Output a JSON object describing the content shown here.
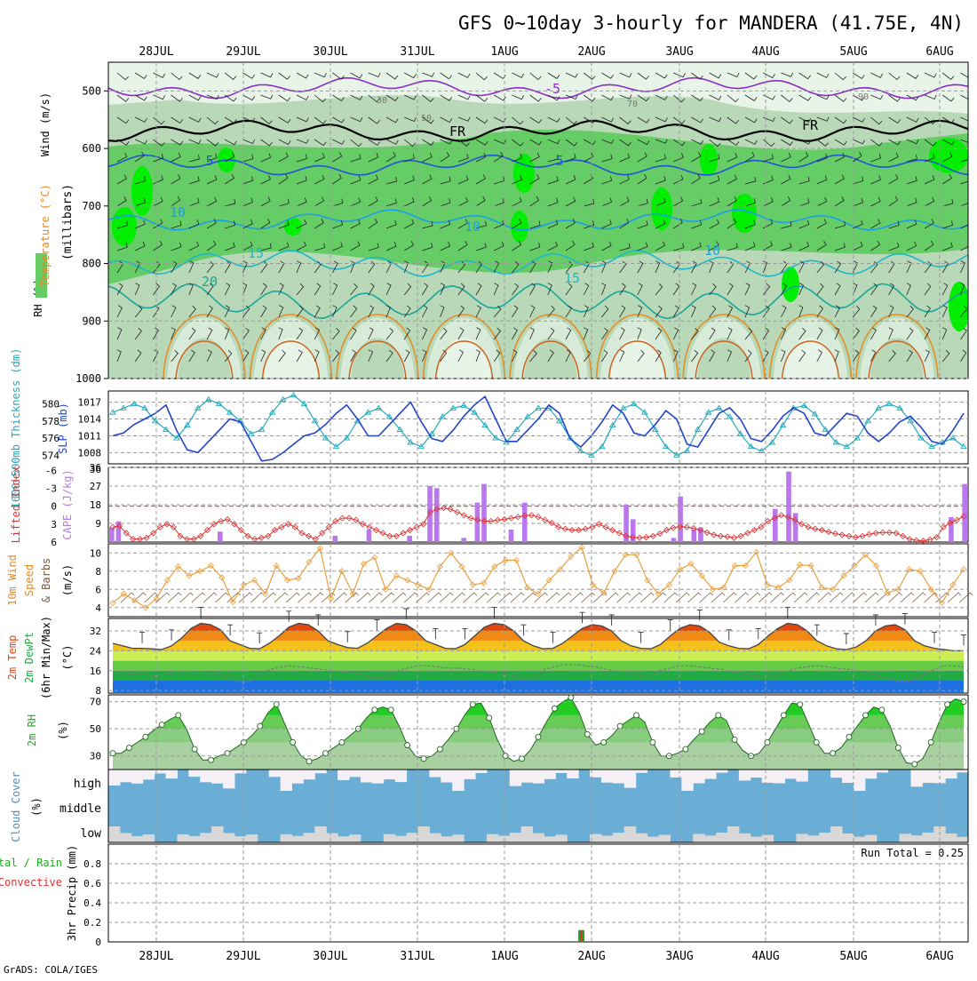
{
  "title": "GFS 0~10day 3-hourly for MANDERA (41.75E, 4N)",
  "credit": "GrADS: COLA/IGES",
  "date_labels": [
    "28JUL",
    "29JUL",
    "30JUL",
    "31JUL",
    "1AUG",
    "2AUG",
    "3AUG",
    "4AUG",
    "5AUG",
    "6AUG"
  ],
  "chart_data": [
    {
      "type": "heatmap",
      "panel": "pressure-profile",
      "ylabel": "(millibars)",
      "legend_labels": [
        "Wind (m/s)",
        "Temperature (°C)",
        "RH (%)"
      ],
      "y_ticks": [
        500,
        600,
        700,
        800,
        900,
        1000
      ],
      "ylim": [
        450,
        1000
      ],
      "contour_labels": [
        "-5",
        "FR",
        "FR",
        "5",
        "5",
        "10",
        "10",
        "10",
        "15",
        "15",
        "20",
        "30",
        "50",
        "70",
        "90"
      ],
      "isotherms": [
        {
          "label": "-5",
          "level_mb": 495
        },
        {
          "label": "FR",
          "level_mb": 570
        },
        {
          "label": "5",
          "level_mb": 630
        },
        {
          "label": "10",
          "level_mb": 725
        },
        {
          "label": "15",
          "level_mb": 800
        },
        {
          "label": "20",
          "level_mb": 865
        }
      ],
      "colors": {
        "rh_low": "#e8f4e8",
        "rh_mid": "#b8d8b8",
        "rh_high": "#66cc66",
        "rh_max": "#00ee00"
      }
    },
    {
      "type": "line",
      "panel": "thickness-slp",
      "legend_labels": [
        "1000~500mb Thickness (dm)",
        "SLP (mb)"
      ],
      "left_ticks": [
        574,
        576,
        578,
        580
      ],
      "right_ticks": [
        1008,
        1011,
        1014,
        1017
      ],
      "series": [
        {
          "name": "Thickness (dm)",
          "axis": "left",
          "color": "#22aabb",
          "values": [
            579,
            579.5,
            580,
            579.5,
            578,
            577,
            576,
            577.5,
            579.5,
            580.5,
            580,
            579,
            578,
            576.5,
            577,
            579,
            580.5,
            581,
            580,
            578,
            576,
            575,
            576,
            578,
            579,
            579.5,
            578.5,
            577,
            575.5,
            575,
            576.5,
            578.5,
            579.5,
            579.8,
            579,
            577.5,
            576,
            575.5,
            577,
            578.5,
            579.5,
            579.5,
            578,
            576,
            574.5,
            574,
            575,
            577.5,
            579.5,
            580,
            579,
            577,
            575,
            574,
            574.5,
            577,
            579,
            579.5,
            578.5,
            576.5,
            575,
            574.5,
            575.5,
            577.5,
            579.5,
            579.8,
            578.8,
            577,
            575.5,
            575,
            576,
            578,
            579.5,
            580,
            579.5,
            578,
            576,
            575,
            575.5,
            576,
            575
          ]
        },
        {
          "name": "SLP (mb)",
          "axis": "right",
          "color": "#2244cc",
          "values": [
            1011,
            1011.5,
            1013,
            1014,
            1015,
            1016.5,
            1012,
            1008.5,
            1008,
            1010,
            1012,
            1014,
            1013.5,
            1010,
            1006.5,
            1006.8,
            1008,
            1009.5,
            1011,
            1011.5,
            1013,
            1015,
            1016.5,
            1014,
            1011,
            1011,
            1013,
            1015,
            1017,
            1013.5,
            1010.5,
            1010,
            1012,
            1014.5,
            1016.5,
            1018,
            1014,
            1010,
            1010,
            1012,
            1014,
            1016.5,
            1015,
            1010.5,
            1009,
            1011,
            1013.5,
            1016.5,
            1015,
            1011.5,
            1011,
            1013,
            1015.5,
            1014,
            1009.5,
            1009,
            1012,
            1015,
            1016,
            1014,
            1010.5,
            1010,
            1012,
            1014.5,
            1016,
            1015,
            1011.5,
            1011,
            1013,
            1015,
            1014.5,
            1011.5,
            1010,
            1011.5,
            1013.5,
            1014.5,
            1012.5,
            1010,
            1009.5,
            1012,
            1015
          ]
        }
      ]
    },
    {
      "type": "bar",
      "panel": "lifted-index-cape",
      "legend_labels": [
        "Lifted Index",
        "CAPE (J/kg)"
      ],
      "left_ticks": [
        -6,
        -3,
        0,
        3,
        6
      ],
      "right_ticks": [
        9,
        18,
        27,
        36
      ],
      "series": [
        {
          "name": "CAPE (J/kg)",
          "kind": "bar",
          "axis": "right",
          "color": "#bb77ee",
          "values": [
            7,
            10,
            0,
            0,
            0,
            0,
            0,
            0,
            0,
            0,
            0,
            0,
            0,
            0,
            0,
            0,
            5,
            0,
            0,
            0,
            0,
            0,
            0,
            0,
            0,
            0,
            0,
            0,
            0,
            0,
            0,
            0,
            0,
            3,
            0,
            0,
            0,
            0,
            6,
            0,
            0,
            0,
            0,
            0,
            3,
            0,
            0,
            27,
            26,
            0,
            0,
            0,
            2,
            0,
            19,
            28,
            0,
            0,
            0,
            6,
            0,
            19,
            0,
            0,
            0,
            0,
            0,
            0,
            0,
            0,
            0,
            0,
            0,
            0,
            0,
            0,
            18,
            11,
            0,
            0,
            0,
            0,
            0,
            2,
            22,
            0,
            6,
            7,
            0,
            0,
            0,
            0,
            0,
            0,
            0,
            0,
            0,
            0,
            16,
            0,
            34,
            14,
            0,
            0,
            0,
            0,
            0,
            0,
            0,
            0,
            0,
            0,
            0,
            0,
            0,
            0,
            0,
            0,
            0,
            0,
            0,
            0,
            0,
            0,
            12,
            0,
            28
          ]
        },
        {
          "name": "Lifted Index",
          "kind": "line",
          "axis": "left",
          "color": "#dd3333",
          "values": [
            3.5,
            3.3,
            4.5,
            5.5,
            5.5,
            5.3,
            4.5,
            3.5,
            3,
            3.5,
            5,
            5.5,
            5.5,
            5,
            4,
            3,
            2.5,
            2.2,
            3,
            4,
            5,
            5.5,
            5.3,
            5,
            4,
            3.5,
            3,
            3.5,
            4.5,
            5,
            5.5,
            4.5,
            3.5,
            2.5,
            2,
            2,
            2.3,
            3,
            3.5,
            4,
            4.5,
            5,
            5,
            4.5,
            4,
            3.5,
            3,
            1,
            0.5,
            0.3,
            0.5,
            1,
            1.5,
            2,
            2.3,
            2.5,
            2.5,
            2.3,
            2.2,
            2,
            1.8,
            1.6,
            1.5,
            1.8,
            2.3,
            2.8,
            3.5,
            3.8,
            4,
            4,
            3.8,
            3.5,
            3,
            3.5,
            4,
            4.5,
            5,
            5.2,
            5.3,
            5.2,
            5,
            4.6,
            4,
            3.6,
            3.4,
            3.5,
            3.7,
            4,
            4.4,
            4.8,
            5,
            5.1,
            5.3,
            5,
            4.5,
            4,
            3.5,
            2.5,
            2,
            1.5,
            1.8,
            2.3,
            3,
            3.5,
            3.8,
            4,
            4.3,
            4.6,
            4.8,
            5,
            5.2,
            5,
            4.7,
            4.5,
            4.4,
            4.4,
            4.5,
            5,
            5.5,
            5.7,
            5.8,
            5.6,
            5.2,
            3.5,
            2.8,
            2.3,
            1.7
          ]
        }
      ]
    },
    {
      "type": "line",
      "panel": "wind-10m",
      "legend_labels": [
        "10m Wind",
        "Speed",
        "& Barbs",
        "(m/s)"
      ],
      "y_ticks": [
        4,
        6,
        8,
        10
      ],
      "series": [
        {
          "name": "10m Wind Speed",
          "color": "#e8a040",
          "values": [
            4.5,
            5.5,
            4.8,
            4,
            5,
            7,
            8.5,
            7.5,
            8,
            8.6,
            7.3,
            4.6,
            6.5,
            7,
            5.5,
            8.6,
            7,
            7.2,
            9,
            10.5,
            5,
            8,
            5.5,
            8.8,
            9.5,
            6,
            7.5,
            7,
            6.5,
            6,
            8.5,
            10,
            8.5,
            6.5,
            6.7,
            8.5,
            9.2,
            9.2,
            6.2,
            5.5,
            7,
            8.2,
            9.6,
            10.6,
            6.5,
            5.6,
            8,
            9.8,
            9.8,
            7,
            5.5,
            6.5,
            8.2,
            8.8,
            7.5,
            6,
            6.2,
            8.6,
            8.6,
            10.1,
            6.5,
            6.2,
            7,
            8.7,
            8.6,
            6.2,
            6,
            7.5,
            8.6,
            9.8,
            8.6,
            5.6,
            6,
            8.2,
            8,
            6,
            4.5,
            6.5,
            8.2
          ]
        }
      ]
    },
    {
      "type": "area",
      "panel": "temperature-2m",
      "legend_labels": [
        "2m Temp",
        "2m DewPt",
        "(6hr Min/Max)",
        "(°C)"
      ],
      "y_ticks": [
        8,
        16,
        24,
        32
      ],
      "series": [
        {
          "name": "2m Temp",
          "values": [
            27,
            26,
            25,
            25,
            24.8,
            24.5,
            26,
            29,
            33,
            35,
            34.5,
            32.5,
            28,
            26.5,
            25,
            24.8,
            27,
            30,
            33.5,
            35,
            34.5,
            32,
            28,
            26.5,
            25.3,
            25,
            27,
            30,
            33,
            35,
            34.5,
            32,
            28,
            26.5,
            25,
            24.8,
            26.5,
            30,
            33.5,
            35,
            34.5,
            32,
            28,
            26,
            24.8,
            25,
            27,
            30,
            33,
            34.5,
            34,
            32,
            28,
            26,
            25,
            24.8,
            26.5,
            30,
            33,
            34.5,
            34,
            31.5,
            27.5,
            26,
            25,
            24.8,
            26.5,
            30,
            33,
            35,
            34.5,
            32,
            28,
            26,
            24.8,
            24.5,
            25.5,
            28,
            32,
            34,
            34.5,
            32.5,
            28,
            26,
            25,
            24.5,
            24,
            24
          ]
        },
        {
          "name": "2m DewPt",
          "values": [
            15,
            15,
            14.5,
            14.5,
            14,
            14.5,
            15,
            15,
            15,
            15,
            14.5,
            14,
            11.5,
            11.5,
            15,
            16.5,
            17.5,
            18,
            17.5,
            17,
            16.5,
            16,
            15.5,
            15,
            14,
            13,
            14,
            16,
            17,
            18,
            18,
            17.5,
            17,
            17,
            16.5,
            16,
            15.5,
            15,
            14,
            12.5,
            13,
            16.5,
            17.5,
            18.5,
            18.5,
            18,
            17.5,
            16.5,
            16,
            15.5,
            14,
            13.5,
            16,
            17,
            18,
            18,
            17.5,
            17,
            16.5,
            15.5,
            15,
            14,
            13.5,
            14,
            15.5,
            17,
            17.5,
            18,
            17.5,
            17,
            16.5,
            16,
            15,
            14,
            12.5,
            11.5,
            12,
            14,
            16,
            18,
            18,
            17.5
          ]
        }
      ]
    },
    {
      "type": "area",
      "panel": "rh-2m",
      "legend_labels": [
        "2m RH",
        "(%)"
      ],
      "y_ticks": [
        30,
        50,
        70
      ],
      "series": [
        {
          "name": "2m RH",
          "values": [
            32,
            32,
            36,
            40,
            44,
            49,
            53,
            57,
            60,
            50,
            35,
            27,
            27,
            30,
            32,
            36,
            40,
            45,
            52,
            62,
            68,
            54,
            40,
            30,
            26,
            28,
            32,
            36,
            40,
            45,
            50,
            58,
            64,
            66,
            64,
            52,
            38,
            30,
            28,
            30,
            35,
            42,
            50,
            60,
            68,
            69,
            58,
            42,
            30,
            26,
            28,
            34,
            44,
            55,
            65,
            70,
            73,
            62,
            46,
            38,
            40,
            45,
            52,
            56,
            60,
            55,
            40,
            30,
            30,
            32,
            35,
            42,
            48,
            55,
            60,
            56,
            42,
            34,
            30,
            32,
            40,
            50,
            60,
            69,
            68,
            54,
            40,
            32,
            32,
            36,
            44,
            52,
            60,
            66,
            64,
            52,
            36,
            25,
            24,
            28,
            40,
            55,
            68,
            72,
            70
          ]
        }
      ]
    },
    {
      "type": "bar",
      "panel": "cloud-cover",
      "legend_labels": [
        "Cloud Cover",
        "(%)"
      ],
      "rows": [
        "high",
        "middle",
        "low"
      ],
      "colors": {
        "cloud": "#6aaed6",
        "clear_high": "#f5f0f5",
        "clear_low": "#d8d8d8"
      }
    },
    {
      "type": "bar",
      "panel": "precipitation",
      "legend_labels": [
        "3hr Precip (mm)",
        "Total / Rain",
        "Convective"
      ],
      "y_ticks": [
        0,
        0.2,
        0.4,
        0.6,
        0.8
      ],
      "ylim": [
        0,
        1
      ],
      "run_total_label": "Run Total = 0.25",
      "colors": {
        "total": "#22aa22",
        "convective": "#dd3333"
      }
    }
  ]
}
